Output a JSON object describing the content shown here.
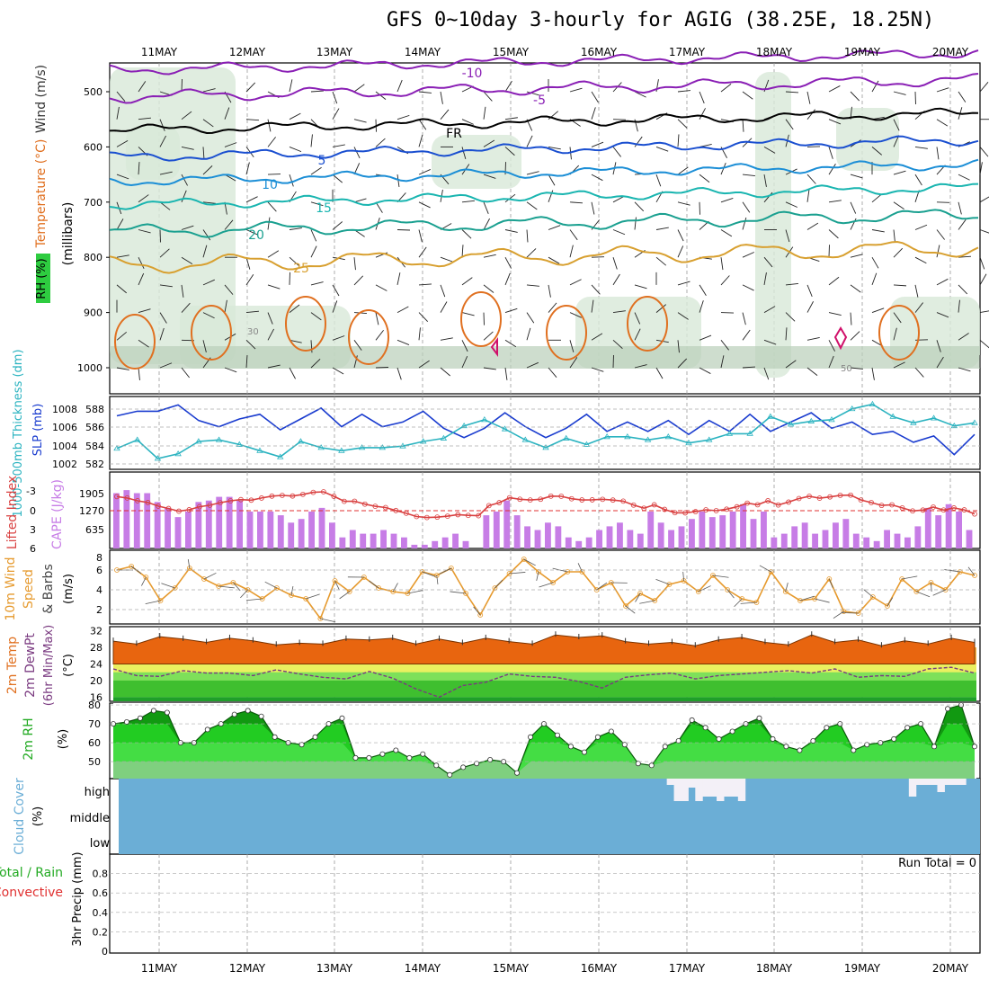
{
  "title": "GFS 0~10day 3-hourly for AGIG (38.25E, 18.25N)",
  "dates": [
    "11MAY",
    "12MAY",
    "13MAY",
    "14MAY",
    "15MAY",
    "16MAY",
    "17MAY",
    "18MAY",
    "19MAY",
    "20MAY"
  ],
  "colors": {
    "rh_green": "#2ecc40",
    "temp_label": "#e07020",
    "wind_label": "#333",
    "slp": "#1a3ccf",
    "thick": "#2bb3c0",
    "li": "#d94040",
    "cape": "#c77de6",
    "wind10": "#e69a2e",
    "cloud": "#6baed6"
  },
  "panels": {
    "upper": {
      "ylabel_rh": "RH (%)",
      "ylabel_temp": "Temperature (°C)",
      "ylabel_wind": "Wind (m/s)",
      "ylabel_unit": "(millibars)",
      "yticks": [
        "500",
        "600",
        "700",
        "800",
        "900",
        "1000"
      ],
      "contour_labels": [
        "-10",
        "-5",
        "FR",
        "5",
        "10",
        "15",
        "20",
        "25",
        "30",
        "50"
      ]
    },
    "slp": {
      "ylabel_a": "1000-500mb Thickness (dm)",
      "ylabel_b": "SLP (mb)",
      "left_ticks": [
        "588",
        "586",
        "584",
        "582"
      ],
      "right_ticks": [
        "1008",
        "1006",
        "1004",
        "1002"
      ]
    },
    "cape": {
      "ylabel_a": "Lifted Index",
      "ylabel_b": "CAPE (J/kg)",
      "left_ticks": [
        "-3",
        "0",
        "3",
        "6"
      ],
      "right_ticks": [
        "1905",
        "1270",
        "635"
      ]
    },
    "wind": {
      "ylabel_a": "10m Wind",
      "ylabel_b": "Speed",
      "ylabel_c": "& Barbs",
      "ylabel_unit": "(m/s)",
      "ticks": [
        "8",
        "6",
        "4",
        "2"
      ]
    },
    "temp": {
      "ylabel_a": "2m Temp",
      "ylabel_b": "2m DewPt",
      "ylabel_c": "(6hr Min/Max)",
      "ylabel_unit": "(°C)",
      "ticks": [
        "32",
        "28",
        "24",
        "20",
        "16"
      ]
    },
    "rh": {
      "ylabel_a": "2m RH",
      "ylabel_unit": "(%)",
      "ticks": [
        "80",
        "70",
        "60",
        "50"
      ]
    },
    "cloud": {
      "ylabel_a": "Cloud Cover",
      "ylabel_unit": "(%)",
      "ticks": [
        "high",
        "middle",
        "low"
      ]
    },
    "precip": {
      "ylabel_a": "Total / Rain",
      "ylabel_b": "Convective",
      "ylabel_unit": "3hr Precip (mm)",
      "ticks": [
        "0.8",
        "0.6",
        "0.4",
        "0.2",
        "0"
      ],
      "run_total": "Run Total = 0"
    }
  },
  "chart_data": [
    {
      "type": "line",
      "title": "SLP (mb)",
      "ylim": [
        1001,
        1009
      ],
      "series": [
        {
          "name": "SLP",
          "values": [
            1007.2,
            1007.8,
            1007.8,
            1008.6,
            1006.6,
            1005.8,
            1006.8,
            1007.4,
            1005.4,
            1006.8,
            1008.2,
            1005.8,
            1007.4,
            1005.8,
            1006.4,
            1007.8,
            1005.6,
            1004.4,
            1005.6,
            1007.6,
            1005.8,
            1004.4,
            1005.6,
            1007.4,
            1005.2,
            1006.4,
            1005.2,
            1006.6,
            1004.8,
            1006.6,
            1005.2,
            1007.4,
            1005.2,
            1006.4,
            1007.6,
            1005.6,
            1006.4,
            1004.8,
            1005.2,
            1003.8,
            1004.6,
            1002.2,
            1004.8
          ]
        }
      ]
    },
    {
      "type": "line",
      "title": "1000-500mb Thickness (dm)",
      "ylim": [
        581.5,
        589.5
      ],
      "series": [
        {
          "name": "Thickness",
          "values": [
            583.5,
            584.6,
            582.2,
            582.8,
            584.4,
            584.6,
            584.0,
            583.2,
            582.4,
            584.4,
            583.6,
            583.2,
            583.6,
            583.6,
            583.8,
            584.4,
            584.8,
            586.4,
            587.2,
            586.0,
            584.6,
            583.6,
            584.8,
            584.0,
            585.0,
            585.0,
            584.6,
            585.0,
            584.2,
            584.6,
            585.4,
            585.4,
            587.6,
            586.6,
            587.0,
            587.2,
            588.6,
            589.2,
            587.6,
            586.8,
            587.4,
            586.4,
            586.8
          ]
        }
      ]
    },
    {
      "type": "bar",
      "title": "CAPE (J/kg)",
      "ylim": [
        0,
        2540
      ],
      "values": [
        1905,
        2010,
        1905,
        1905,
        1600,
        1400,
        1080,
        1270,
        1600,
        1650,
        1778,
        1778,
        1650,
        1270,
        1270,
        1270,
        1143,
        889,
        1016,
        1270,
        1398,
        889,
        381,
        635,
        508,
        508,
        635,
        508,
        381,
        127,
        127,
        254,
        381,
        508,
        254,
        0,
        1143,
        1270,
        1651,
        1143,
        762,
        635,
        889,
        762,
        381,
        254,
        381,
        635,
        762,
        889,
        635,
        508,
        1270,
        889,
        635,
        762,
        1016,
        1270,
        1080,
        1143,
        1270,
        1524,
        1016,
        1270,
        381,
        508,
        762,
        889,
        508,
        635,
        889,
        1016,
        508,
        381,
        254,
        635,
        508,
        381,
        762,
        1397,
        1143,
        1524,
        1270,
        635
      ]
    },
    {
      "type": "line",
      "title": "10m Wind Speed (m/s)",
      "ylim": [
        1,
        8
      ],
      "series": [
        {
          "name": "Wind speed",
          "values": [
            6.4,
            6.8,
            5.6,
            3.0,
            4.4,
            6.6,
            5.4,
            4.6,
            5.0,
            4.2,
            3.2,
            4.4,
            3.6,
            3.2,
            1.0,
            5.2,
            4.0,
            5.6,
            4.4,
            4.0,
            3.8,
            6.2,
            5.8,
            6.6,
            3.8,
            1.4,
            4.4,
            6.0,
            7.6,
            6.2,
            5.0,
            6.2,
            6.2,
            4.2,
            5.0,
            2.4,
            3.8,
            3.0,
            4.8,
            5.2,
            4.0,
            5.8,
            4.2,
            3.2,
            2.8,
            6.2,
            4.0,
            3.0,
            3.2,
            5.4,
            1.8,
            1.6,
            3.4,
            2.4,
            5.4,
            4.0,
            5.0,
            4.2,
            6.2,
            5.8
          ]
        }
      ]
    },
    {
      "type": "area",
      "title": "2m Temp (°C)",
      "ylim": [
        15,
        33
      ],
      "series": [
        {
          "name": "Temp max",
          "values": [
            29.5,
            28.8,
            30.6,
            30.0,
            29.2,
            30.2,
            29.6,
            28.6,
            29.0,
            28.8,
            30.0,
            29.8,
            30.2,
            28.8,
            30.0,
            29.0,
            30.2,
            29.4,
            28.8,
            31.0,
            30.4,
            30.8,
            29.4,
            28.8,
            29.2,
            28.4,
            29.8,
            30.4,
            29.2,
            28.6,
            31.0,
            29.2,
            29.8,
            28.4,
            29.6,
            28.8,
            30.2,
            29.2
          ]
        },
        {
          "name": "DewPt",
          "values": [
            22.8,
            21.2,
            21.0,
            22.4,
            21.8,
            21.8,
            21.2,
            22.6,
            21.6,
            20.8,
            20.4,
            22.2,
            20.6,
            18.0,
            16.0,
            18.8,
            19.6,
            21.6,
            21.0,
            20.8,
            19.8,
            18.2,
            20.8,
            21.4,
            21.8,
            20.4,
            21.2,
            21.6,
            22.0,
            22.4,
            21.8,
            22.8,
            20.8,
            21.2,
            21.0,
            22.8,
            23.2,
            21.8
          ]
        }
      ]
    },
    {
      "type": "area",
      "title": "2m RH (%)",
      "ylim": [
        41,
        81
      ],
      "series": [
        {
          "name": "RH",
          "values": [
            70,
            71,
            73,
            77,
            76,
            60,
            60,
            67,
            70,
            75,
            77,
            74,
            63,
            60,
            59,
            63,
            70,
            73,
            52,
            52,
            54,
            56,
            52,
            54,
            48,
            43,
            47,
            49,
            51,
            50,
            44,
            63,
            70,
            64,
            58,
            55,
            63,
            66,
            59,
            49,
            48,
            58,
            61,
            72,
            68,
            62,
            66,
            70,
            73,
            62,
            58,
            56,
            61,
            68,
            70,
            56,
            59,
            60,
            62,
            68,
            70,
            58,
            78,
            80,
            58
          ]
        }
      ]
    },
    {
      "type": "bar",
      "title": "Cloud Cover (%) high",
      "ylim": [
        0,
        100
      ],
      "values": [
        0,
        0,
        0,
        0,
        0,
        0,
        0,
        0,
        0,
        0,
        0,
        0,
        0,
        0,
        0,
        0,
        0,
        0,
        0,
        0,
        0,
        0,
        0,
        0,
        0,
        0,
        0,
        0,
        0,
        0,
        0,
        0,
        0,
        0,
        0,
        0,
        0,
        0,
        0,
        0,
        0,
        0,
        0,
        0,
        0,
        0,
        0,
        0,
        0,
        0,
        0,
        0,
        0,
        0,
        0,
        0,
        0,
        0,
        0,
        0,
        0,
        0,
        0,
        0,
        0,
        0,
        0,
        0,
        0,
        0,
        0,
        0,
        0,
        0,
        0,
        0,
        0,
        7,
        25,
        25,
        10,
        25,
        20,
        20,
        25,
        20,
        20,
        25,
        0,
        0,
        0,
        0,
        0,
        0,
        0,
        0,
        0,
        0,
        0,
        0,
        0,
        0,
        0,
        0,
        0,
        0,
        0,
        0,
        0,
        0,
        0,
        20,
        7,
        7,
        7,
        15,
        7,
        7,
        7,
        0,
        0
      ]
    },
    {
      "type": "line",
      "title": "3hr Precip (mm)",
      "ylim": [
        0,
        1
      ],
      "series": [
        {
          "name": "Total",
          "values": [
            0,
            0,
            0,
            0,
            0,
            0,
            0,
            0,
            0,
            0
          ]
        }
      ]
    }
  ]
}
